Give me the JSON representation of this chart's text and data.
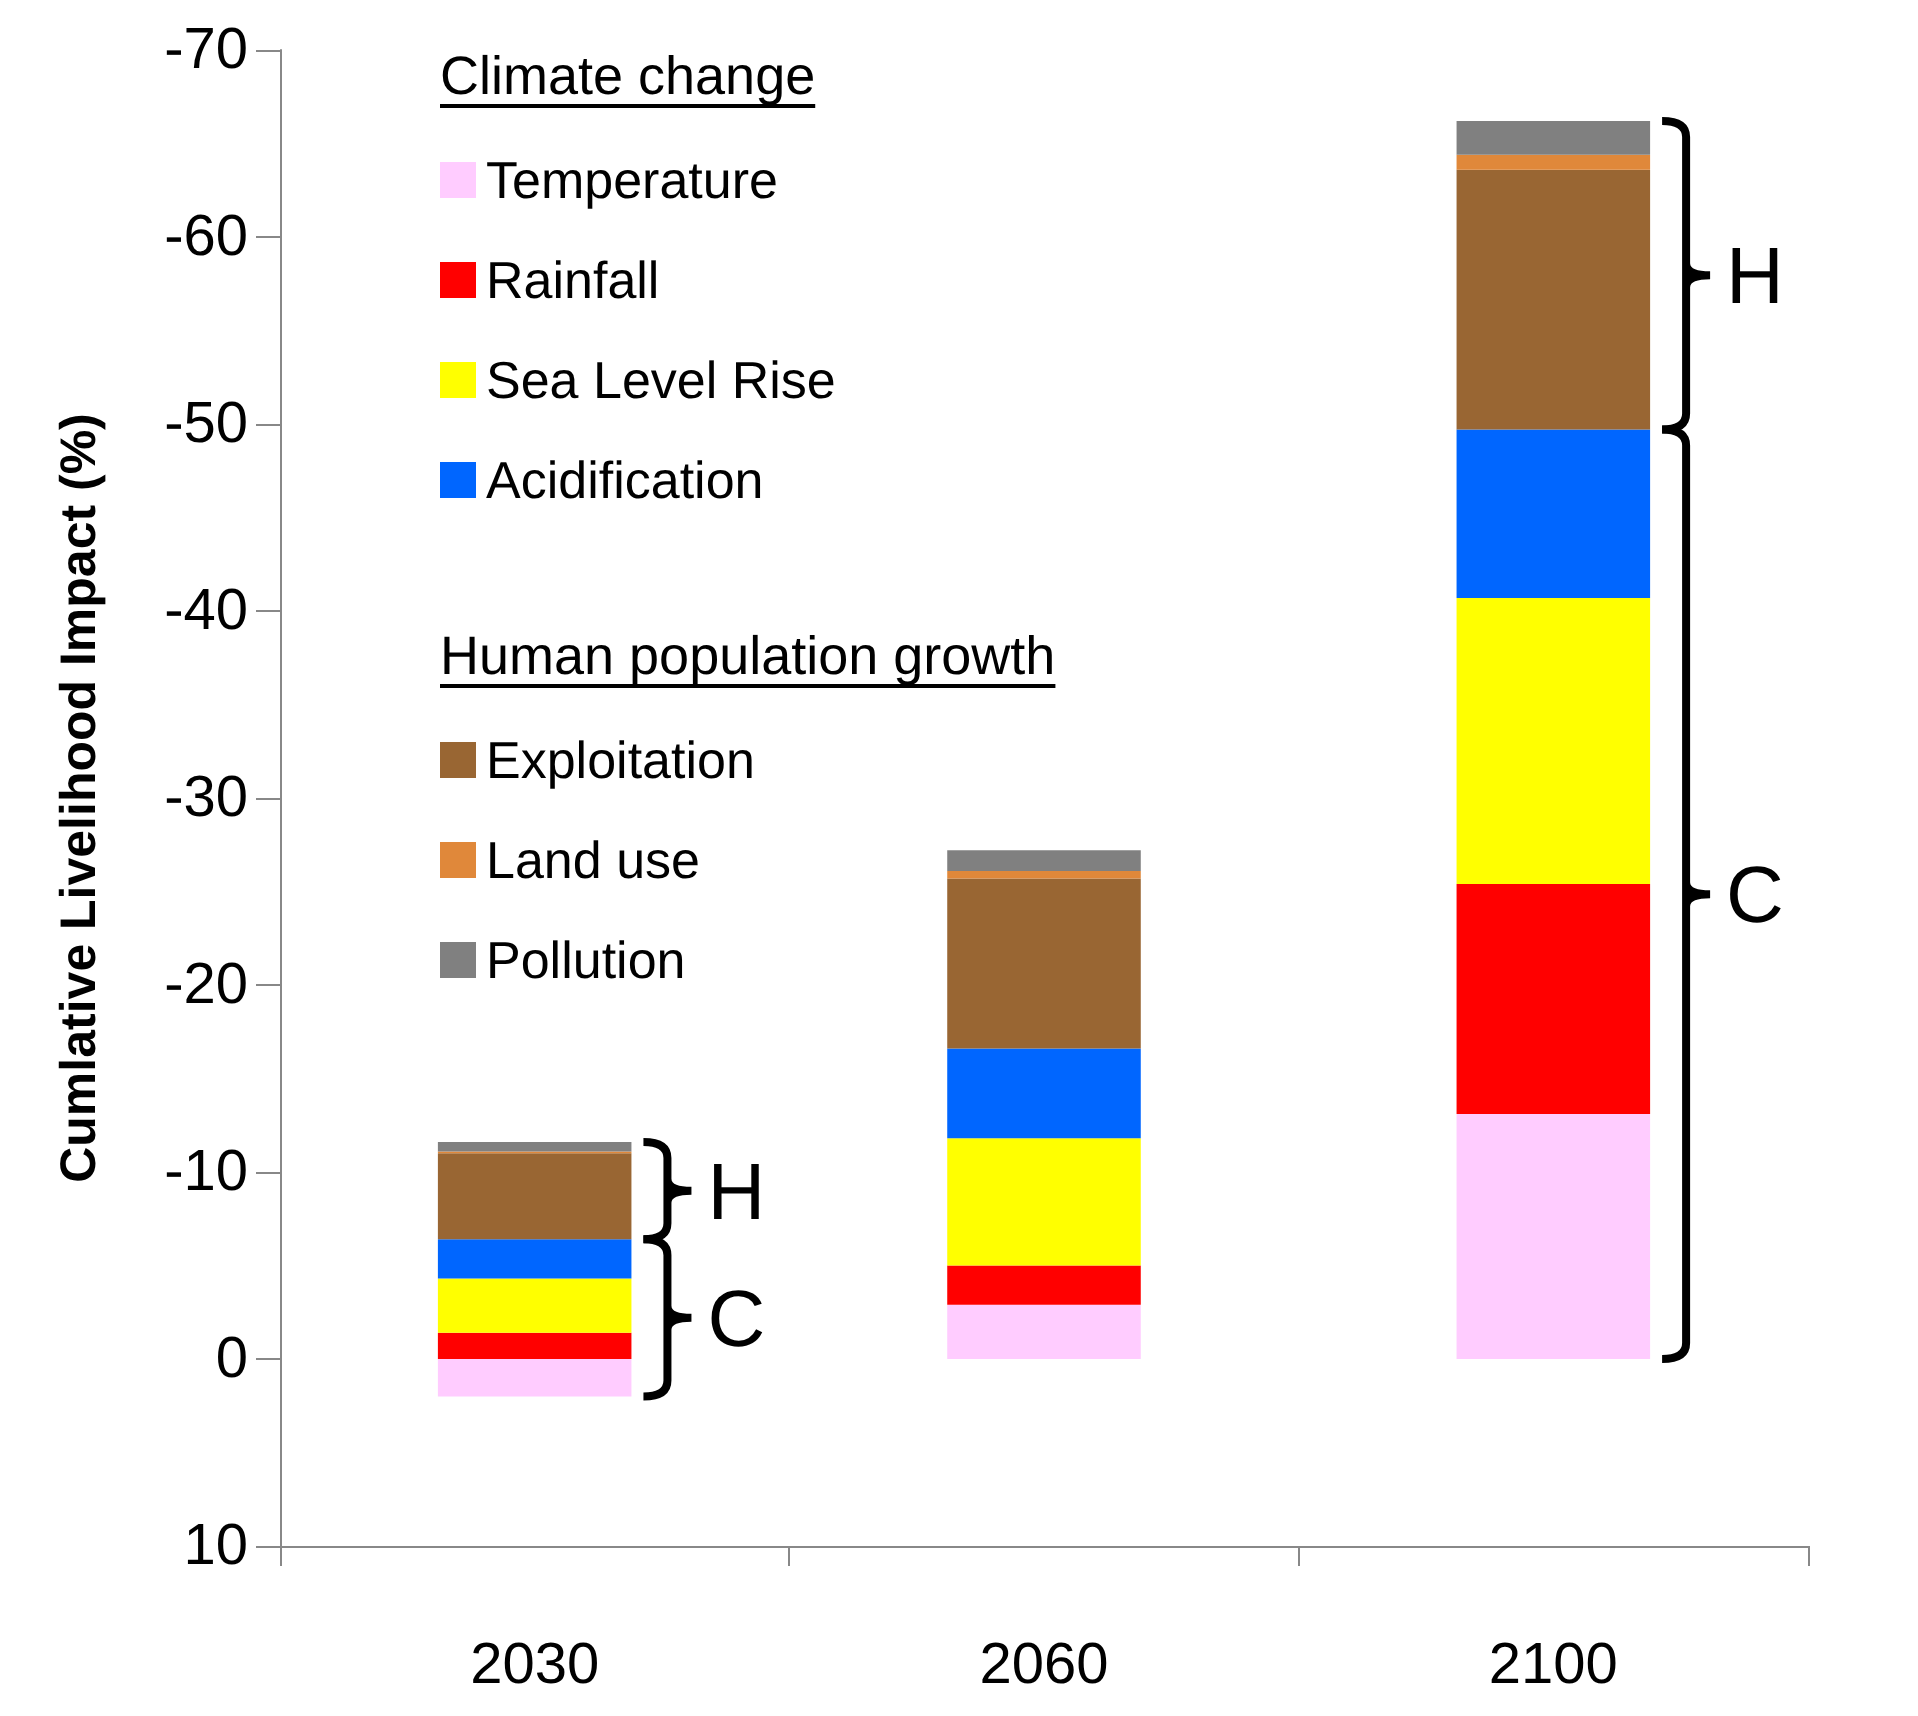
{
  "chart_data": {
    "type": "bar",
    "stacked": true,
    "ylabel": "Cumlative Livelihood Impact (%)",
    "categories": [
      "2030",
      "2060",
      "2100"
    ],
    "series": [
      {
        "name": "Temperature",
        "color": "#ffccff",
        "values": [
          2.0,
          -2.9,
          -13.1
        ]
      },
      {
        "name": "Rainfall",
        "color": "#ff0000",
        "values": [
          -1.4,
          -2.1,
          -12.3
        ]
      },
      {
        "name": "Sea Level Rise",
        "color": "#ffff00",
        "values": [
          -2.9,
          -6.8,
          -15.3
        ]
      },
      {
        "name": "Acidification",
        "color": "#0066ff",
        "values": [
          -2.1,
          -4.8,
          -9.0
        ]
      },
      {
        "name": "Exploitation",
        "color": "#996633",
        "values": [
          -4.6,
          -9.1,
          -13.9
        ]
      },
      {
        "name": "Land use",
        "color": "#e0883a",
        "values": [
          -0.1,
          -0.4,
          -0.8
        ]
      },
      {
        "name": "Pollution",
        "color": "#808080",
        "values": [
          -0.5,
          -1.1,
          -1.8
        ]
      }
    ],
    "ylim": [
      10,
      -70
    ],
    "yticks": [
      -70,
      -60,
      -50,
      -40,
      -30,
      -20,
      -10,
      0,
      10
    ],
    "grid": false,
    "legend": "top left",
    "annotations": [
      "Climate change",
      "Human population growth",
      "H",
      "C",
      "H",
      "C"
    ]
  }
}
